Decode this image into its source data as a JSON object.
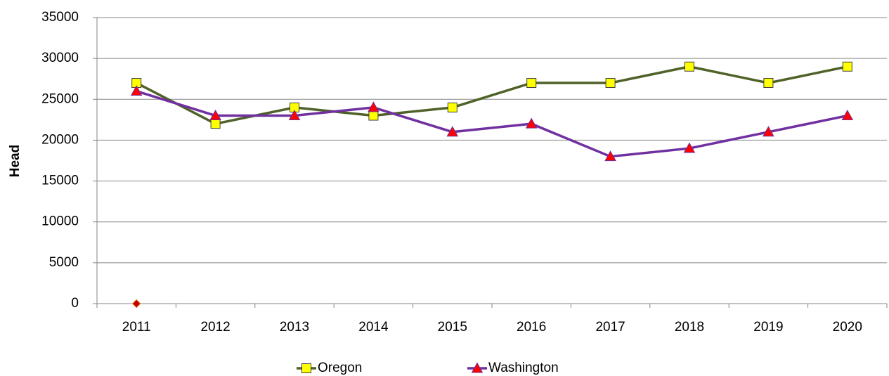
{
  "chart_data": {
    "type": "line",
    "y_label": "Head",
    "categories": [
      "2011",
      "2012",
      "2013",
      "2014",
      "2015",
      "2016",
      "2017",
      "2018",
      "2019",
      "2020"
    ],
    "series": [
      {
        "name": "Oregon",
        "color": "#4f6228",
        "marker": "square",
        "marker_color": "#ffff00",
        "values": [
          27000,
          22000,
          24000,
          23000,
          24000,
          27000,
          27000,
          29000,
          27000,
          29000
        ]
      },
      {
        "name": "Washington",
        "color": "#7030a0",
        "marker": "triangle",
        "marker_color": "#ff0000",
        "values": [
          26000,
          23000,
          23000,
          24000,
          21000,
          22000,
          18000,
          19000,
          21000,
          23000
        ]
      },
      {
        "color": "#e46c0a",
        "marker": "diamond",
        "marker_color": "#c00000",
        "values": [
          0,
          null,
          null,
          null,
          null,
          null,
          null,
          null,
          null,
          null
        ]
      }
    ],
    "ylim": [
      0,
      35000
    ],
    "yticks": [
      0,
      5000,
      10000,
      15000,
      20000,
      25000,
      30000,
      35000
    ],
    "grid": true
  }
}
